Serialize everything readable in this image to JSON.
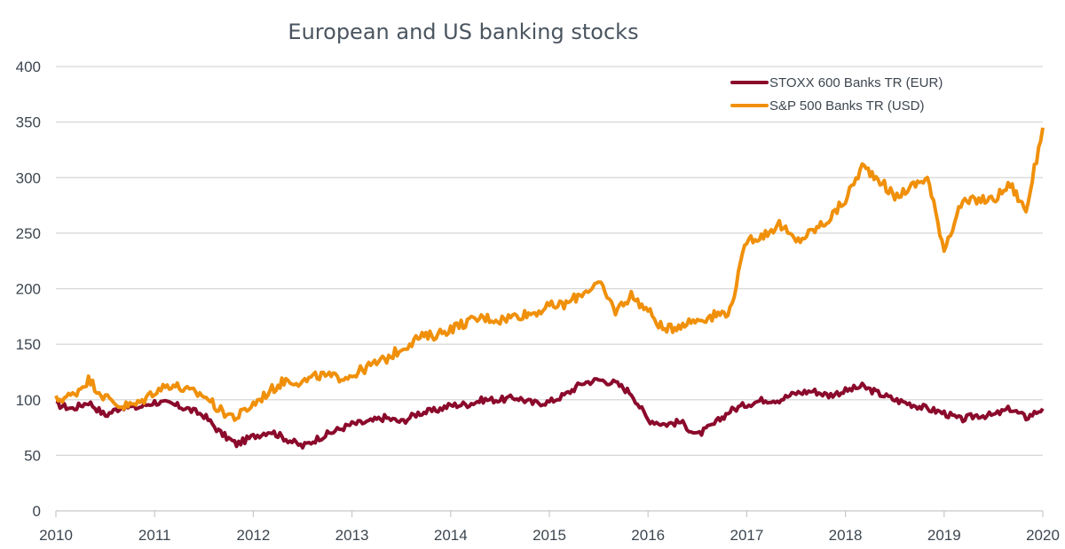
{
  "chart_data": {
    "type": "line",
    "title": "European and US banking stocks",
    "xlabel": "",
    "ylabel": "",
    "xlim": [
      2010,
      2020
    ],
    "ylim": [
      0,
      400
    ],
    "x_ticks": [
      "2010",
      "2011",
      "2012",
      "2013",
      "2014",
      "2015",
      "2016",
      "2017",
      "2018",
      "2019",
      "2020"
    ],
    "y_ticks": [
      "0",
      "50",
      "100",
      "150",
      "200",
      "250",
      "300",
      "350",
      "400"
    ],
    "grid": true,
    "legend_position": "top-right",
    "x": [
      2010.0,
      2010.17,
      2010.33,
      2010.5,
      2010.67,
      2010.83,
      2011.0,
      2011.17,
      2011.33,
      2011.5,
      2011.67,
      2011.83,
      2012.0,
      2012.17,
      2012.33,
      2012.5,
      2012.67,
      2012.83,
      2013.0,
      2013.17,
      2013.33,
      2013.5,
      2013.67,
      2013.83,
      2014.0,
      2014.17,
      2014.33,
      2014.5,
      2014.67,
      2014.83,
      2015.0,
      2015.17,
      2015.33,
      2015.5,
      2015.67,
      2015.83,
      2016.0,
      2016.17,
      2016.33,
      2016.5,
      2016.67,
      2016.83,
      2017.0,
      2017.17,
      2017.33,
      2017.5,
      2017.67,
      2017.83,
      2018.0,
      2018.17,
      2018.33,
      2018.5,
      2018.67,
      2018.83,
      2019.0,
      2019.17,
      2019.33,
      2019.5,
      2019.67,
      2019.83,
      2020.0
    ],
    "series": [
      {
        "name": "STOXX 600 Banks TR (EUR)",
        "color": "#8b0a2c",
        "values": [
          96,
          92,
          98,
          86,
          94,
          93,
          98,
          96,
          92,
          86,
          70,
          60,
          67,
          72,
          65,
          58,
          66,
          72,
          78,
          80,
          84,
          80,
          88,
          90,
          95,
          96,
          100,
          100,
          102,
          97,
          98,
          105,
          115,
          118,
          115,
          106,
          82,
          78,
          80,
          68,
          78,
          90,
          96,
          100,
          100,
          106,
          108,
          104,
          108,
          112,
          106,
          100,
          96,
          92,
          88,
          82,
          86,
          86,
          92,
          84,
          92
        ]
      },
      {
        "name": "S&P 500 Banks TR (USD)",
        "color": "#f0900a",
        "values": [
          100,
          104,
          118,
          102,
          94,
          96,
          108,
          114,
          108,
          104,
          90,
          84,
          96,
          108,
          118,
          116,
          122,
          120,
          122,
          130,
          136,
          146,
          156,
          158,
          164,
          170,
          174,
          172,
          176,
          178,
          184,
          186,
          196,
          205,
          180,
          194,
          180,
          162,
          168,
          172,
          176,
          180,
          244,
          248,
          258,
          242,
          252,
          262,
          280,
          310,
          300,
          282,
          292,
          300,
          236,
          276,
          280,
          280,
          294,
          270,
          345
        ]
      }
    ]
  }
}
